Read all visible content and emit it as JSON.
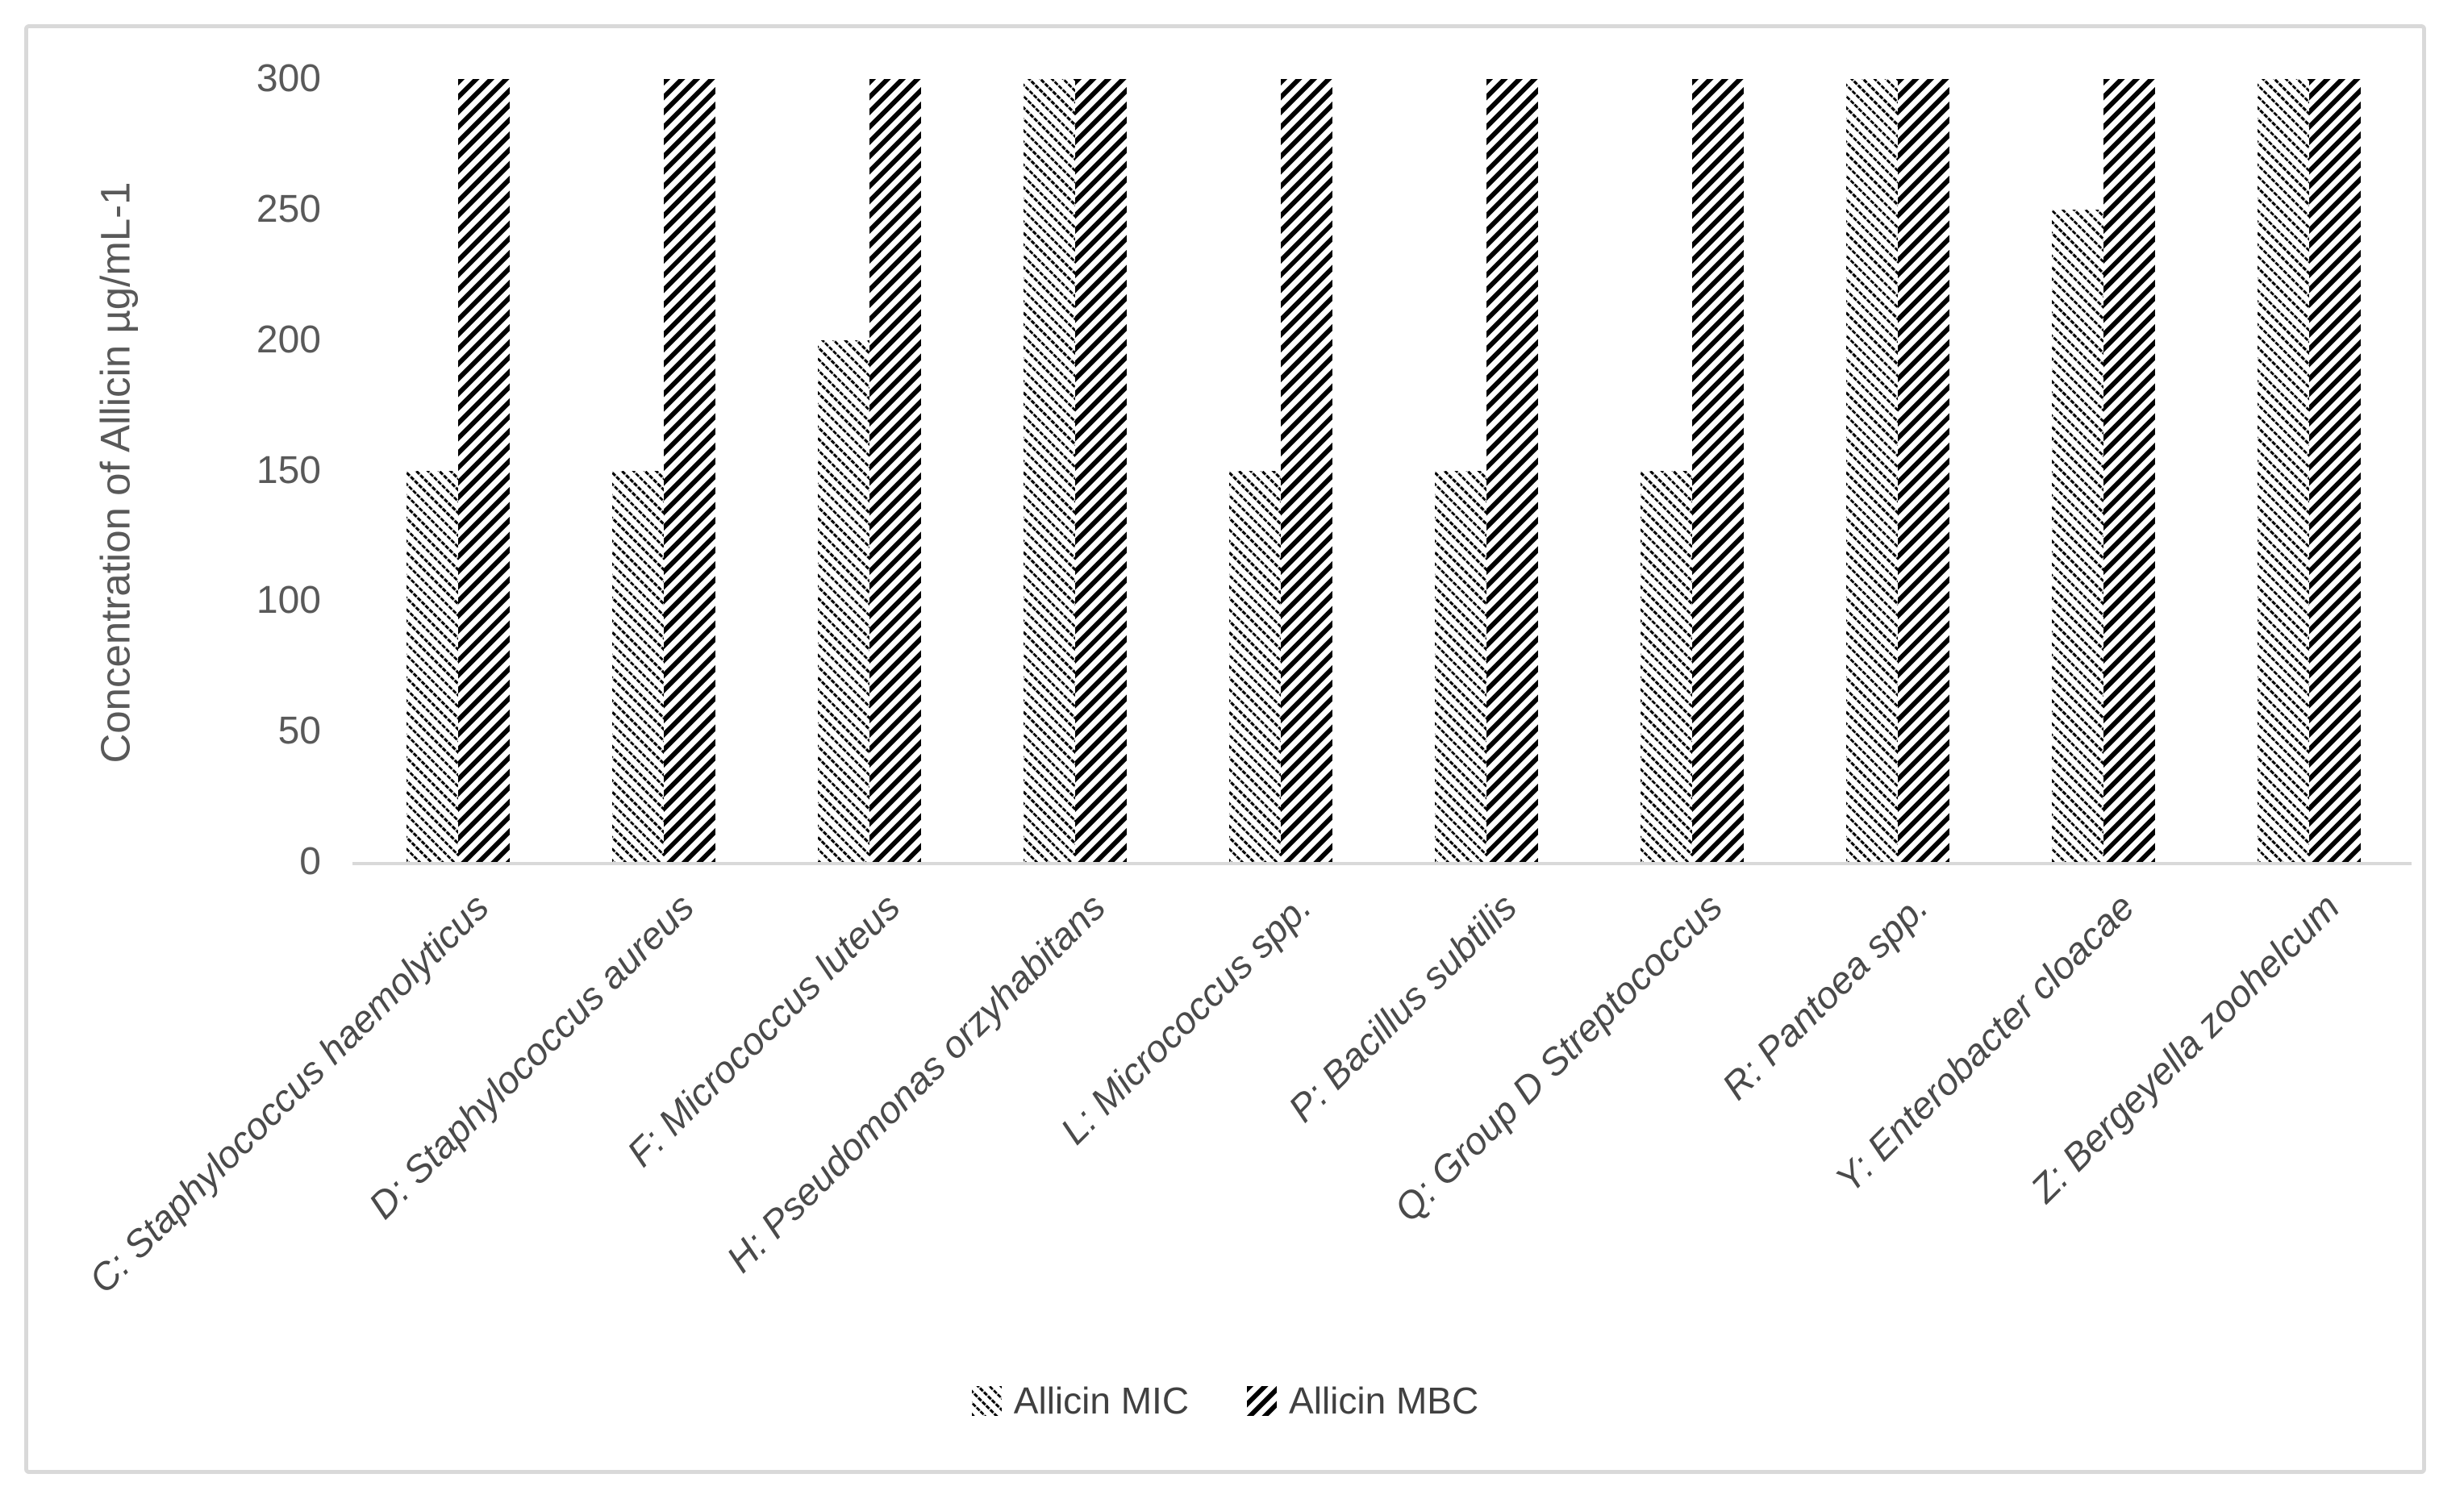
{
  "chart_data": {
    "type": "bar",
    "title": "",
    "ylabel": "Concentration of Allicin µg/mL-1",
    "xlabel": "",
    "ylim": [
      0,
      300
    ],
    "yticks": [
      0,
      50,
      100,
      150,
      200,
      250,
      300
    ],
    "grid": false,
    "legend_position": "bottom-center",
    "categories": [
      "C: Staphylococcus haemolyticus",
      "D: Staphylococcus aureus",
      "F: Micrococcus luteus",
      "H: Pseudomonas orzyhabitans",
      "L: Micrococcus spp.",
      "P: Bacillus subtilis",
      "Q: Group D Streptococcus",
      "R: Pantoea spp.",
      "Y: Enterobacter cloacae",
      "Z: Bergeyella zoohelcum"
    ],
    "series": [
      {
        "name": "Allicin MIC",
        "pattern": "thin-backslash-hatch",
        "values": [
          150,
          150,
          200,
          300,
          150,
          150,
          150,
          300,
          250,
          300
        ]
      },
      {
        "name": "Allicin MBC",
        "pattern": "thick-forwardslash-hatch",
        "values": [
          300,
          300,
          300,
          300,
          300,
          300,
          300,
          300,
          300,
          300
        ]
      }
    ],
    "colors": {
      "bar_ink": "#000000",
      "axis_line": "#d9d9d9",
      "frame_border": "#d9d9d9",
      "tick_label": "#595959",
      "category_label": "#4a4a4a",
      "legend_label": "#404040"
    }
  }
}
